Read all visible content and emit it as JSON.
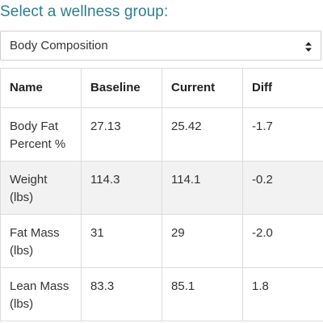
{
  "heading": "Select a wellness group:",
  "select": {
    "value": "Body Composition",
    "icon": "sort-arrows-icon"
  },
  "table": {
    "headers": [
      "Name",
      "Baseline",
      "Current",
      "Diff"
    ],
    "rows": [
      {
        "name_line1": "Body Fat",
        "name_line2": "Percent %",
        "baseline": "27.13",
        "current": "25.42",
        "diff": "-1.7"
      },
      {
        "name_line1": "Weight",
        "name_line2": "(lbs)",
        "baseline": "114.3",
        "current": "114.1",
        "diff": "-0.2"
      },
      {
        "name_line1": "Fat Mass",
        "name_line2": "(lbs)",
        "baseline": "31",
        "current": "29",
        "diff": "-2.0"
      },
      {
        "name_line1": "Lean Mass",
        "name_line2": "(lbs)",
        "baseline": "83.3",
        "current": "85.1",
        "diff": "1.8"
      }
    ]
  }
}
